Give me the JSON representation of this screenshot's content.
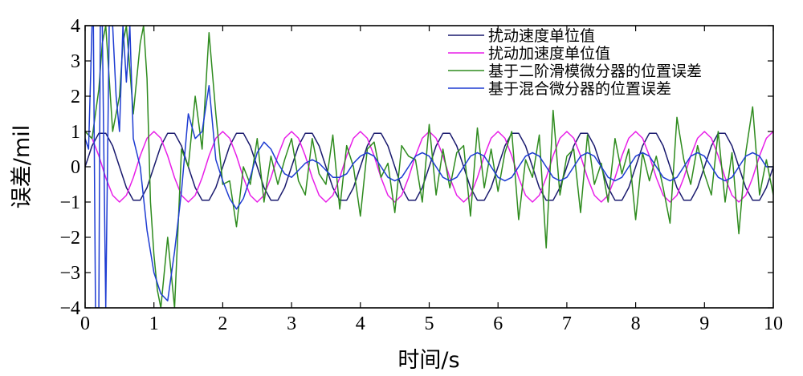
{
  "chart_data": {
    "type": "line",
    "xlabel": "时间/s",
    "ylabel": "误差/mil",
    "xlim": [
      0,
      10
    ],
    "ylim": [
      -4,
      4
    ],
    "x_ticks": [
      0,
      1,
      2,
      3,
      4,
      5,
      6,
      7,
      8,
      9,
      10
    ],
    "x_tick_labels": [
      "0",
      "1",
      "2",
      "3",
      "4",
      "5",
      "6",
      "7",
      "8",
      "9",
      "10"
    ],
    "y_ticks": [
      -4,
      -3,
      -2,
      -1,
      0,
      1,
      2,
      3,
      4
    ],
    "y_tick_labels": [
      "−4",
      "−3",
      "−2",
      "−1",
      "0",
      "1",
      "2",
      "3",
      "4"
    ],
    "grid": false,
    "legend_position": "top-right",
    "series": [
      {
        "name": "扰动速度单位值",
        "color": "#1a1a6e",
        "x": [
          0,
          0.1,
          0.2,
          0.3,
          0.4,
          0.5,
          0.6,
          0.7,
          0.8,
          0.9,
          1.0,
          1.1,
          1.2,
          1.3,
          1.4,
          1.5,
          1.6,
          1.7,
          1.8,
          1.9,
          2.0,
          2.1,
          2.2,
          2.3,
          2.4,
          2.5,
          2.6,
          2.7,
          2.8,
          2.9,
          3.0,
          3.1,
          3.2,
          3.3,
          3.4,
          3.5,
          3.6,
          3.7,
          3.8,
          3.9,
          4.0,
          4.1,
          4.2,
          4.3,
          4.4,
          4.5,
          4.6,
          4.7,
          4.8,
          4.9,
          5.0,
          5.1,
          5.2,
          5.3,
          5.4,
          5.5,
          5.6,
          5.7,
          5.8,
          5.9,
          6.0,
          6.1,
          6.2,
          6.3,
          6.4,
          6.5,
          6.6,
          6.7,
          6.8,
          6.9,
          7.0,
          7.1,
          7.2,
          7.3,
          7.4,
          7.5,
          7.6,
          7.7,
          7.8,
          7.9,
          8.0,
          8.1,
          8.2,
          8.3,
          8.4,
          8.5,
          8.6,
          8.7,
          8.8,
          8.9,
          9.0,
          9.1,
          9.2,
          9.3,
          9.4,
          9.5,
          9.6,
          9.7,
          9.8,
          9.9,
          10.0
        ],
        "y": [
          0.0,
          0.59,
          0.95,
          0.95,
          0.59,
          0.0,
          -0.59,
          -0.95,
          -0.95,
          -0.59,
          0.0,
          0.59,
          0.95,
          0.95,
          0.59,
          0.0,
          -0.59,
          -0.95,
          -0.95,
          -0.59,
          0.0,
          0.59,
          0.95,
          0.95,
          0.59,
          0.0,
          -0.59,
          -0.95,
          -0.95,
          -0.59,
          0.0,
          0.59,
          0.95,
          0.95,
          0.59,
          0.0,
          -0.59,
          -0.95,
          -0.95,
          -0.59,
          0.0,
          0.59,
          0.95,
          0.95,
          0.59,
          0.0,
          -0.59,
          -0.95,
          -0.95,
          -0.59,
          0.0,
          0.59,
          0.95,
          0.95,
          0.59,
          0.0,
          -0.59,
          -0.95,
          -0.95,
          -0.59,
          0.0,
          0.59,
          0.95,
          0.95,
          0.59,
          0.0,
          -0.59,
          -0.95,
          -0.95,
          -0.59,
          0.0,
          0.59,
          0.95,
          0.95,
          0.59,
          0.0,
          -0.59,
          -0.95,
          -0.95,
          -0.59,
          0.0,
          0.59,
          0.95,
          0.95,
          0.59,
          0.0,
          -0.59,
          -0.95,
          -0.95,
          -0.59,
          0.0,
          0.59,
          0.95,
          0.95,
          0.59,
          0.0,
          -0.59,
          -0.95,
          -0.95,
          -0.59,
          0.0
        ]
      },
      {
        "name": "扰动加速度单位值",
        "color": "#e81ee8",
        "x": [
          0,
          0.1,
          0.2,
          0.3,
          0.4,
          0.5,
          0.6,
          0.7,
          0.8,
          0.9,
          1.0,
          1.1,
          1.2,
          1.3,
          1.4,
          1.5,
          1.6,
          1.7,
          1.8,
          1.9,
          2.0,
          2.1,
          2.2,
          2.3,
          2.4,
          2.5,
          2.6,
          2.7,
          2.8,
          2.9,
          3.0,
          3.1,
          3.2,
          3.3,
          3.4,
          3.5,
          3.6,
          3.7,
          3.8,
          3.9,
          4.0,
          4.1,
          4.2,
          4.3,
          4.4,
          4.5,
          4.6,
          4.7,
          4.8,
          4.9,
          5.0,
          5.1,
          5.2,
          5.3,
          5.4,
          5.5,
          5.6,
          5.7,
          5.8,
          5.9,
          6.0,
          6.1,
          6.2,
          6.3,
          6.4,
          6.5,
          6.6,
          6.7,
          6.8,
          6.9,
          7.0,
          7.1,
          7.2,
          7.3,
          7.4,
          7.5,
          7.6,
          7.7,
          7.8,
          7.9,
          8.0,
          8.1,
          8.2,
          8.3,
          8.4,
          8.5,
          8.6,
          8.7,
          8.8,
          8.9,
          9.0,
          9.1,
          9.2,
          9.3,
          9.4,
          9.5,
          9.6,
          9.7,
          9.8,
          9.9,
          10.0
        ],
        "y": [
          1.0,
          0.81,
          0.31,
          -0.31,
          -0.81,
          -1.0,
          -0.81,
          -0.31,
          0.31,
          0.81,
          1.0,
          0.81,
          0.31,
          -0.31,
          -0.81,
          -1.0,
          -0.81,
          -0.31,
          0.31,
          0.81,
          1.0,
          0.81,
          0.31,
          -0.31,
          -0.81,
          -1.0,
          -0.81,
          -0.31,
          0.31,
          0.81,
          1.0,
          0.81,
          0.31,
          -0.31,
          -0.81,
          -1.0,
          -0.81,
          -0.31,
          0.31,
          0.81,
          1.0,
          0.81,
          0.31,
          -0.31,
          -0.81,
          -1.0,
          -0.81,
          -0.31,
          0.31,
          0.81,
          1.0,
          0.81,
          0.31,
          -0.31,
          -0.81,
          -1.0,
          -0.81,
          -0.31,
          0.31,
          0.81,
          1.0,
          0.81,
          0.31,
          -0.31,
          -0.81,
          -1.0,
          -0.81,
          -0.31,
          0.31,
          0.81,
          1.0,
          0.81,
          0.31,
          -0.31,
          -0.81,
          -1.0,
          -0.81,
          -0.31,
          0.31,
          0.81,
          1.0,
          0.81,
          0.31,
          -0.31,
          -0.81,
          -1.0,
          -0.81,
          -0.31,
          0.31,
          0.81,
          1.0,
          0.81,
          0.31,
          -0.31,
          -0.81,
          -1.0,
          -0.81,
          -0.31,
          0.31,
          0.81,
          1.0
        ]
      },
      {
        "name": "基于二阶滑模微分器的位置误差",
        "color": "#2e8b1e",
        "x": [
          0,
          0.1,
          0.2,
          0.25,
          0.3,
          0.4,
          0.5,
          0.55,
          0.6,
          0.7,
          0.8,
          0.85,
          0.9,
          0.95,
          1.0,
          1.05,
          1.1,
          1.2,
          1.3,
          1.4,
          1.5,
          1.6,
          1.7,
          1.8,
          1.9,
          2.0,
          2.1,
          2.2,
          2.3,
          2.4,
          2.5,
          2.6,
          2.7,
          2.8,
          2.9,
          3.0,
          3.1,
          3.2,
          3.3,
          3.4,
          3.5,
          3.6,
          3.7,
          3.8,
          3.9,
          4.0,
          4.1,
          4.2,
          4.3,
          4.4,
          4.5,
          4.6,
          4.7,
          4.8,
          4.9,
          5.0,
          5.1,
          5.2,
          5.3,
          5.4,
          5.5,
          5.6,
          5.7,
          5.8,
          5.9,
          6.0,
          6.1,
          6.2,
          6.3,
          6.4,
          6.5,
          6.6,
          6.7,
          6.8,
          6.9,
          7.0,
          7.1,
          7.2,
          7.3,
          7.4,
          7.5,
          7.6,
          7.7,
          7.8,
          7.9,
          8.0,
          8.1,
          8.2,
          8.3,
          8.4,
          8.5,
          8.6,
          8.7,
          8.8,
          8.9,
          9.0,
          9.1,
          9.2,
          9.3,
          9.4,
          9.5,
          9.6,
          9.7,
          9.8,
          9.9,
          10.0
        ],
        "y": [
          1.0,
          0.8,
          2.2,
          3.5,
          4.0,
          1.0,
          2.0,
          3.5,
          4.0,
          1.5,
          3.5,
          4.0,
          2.5,
          -1.0,
          -2.5,
          -3.5,
          -4.0,
          -2.0,
          -4.0,
          0.5,
          0.0,
          2.0,
          0.5,
          3.8,
          1.5,
          -0.5,
          -0.4,
          -1.7,
          0.0,
          -0.5,
          0.8,
          -1.0,
          0.3,
          -0.5,
          0.2,
          0.8,
          -0.4,
          -0.8,
          0.8,
          -0.2,
          -0.5,
          0.9,
          -1.2,
          0.6,
          0.0,
          -1.4,
          0.5,
          0.7,
          -0.3,
          0.1,
          -1.3,
          0.6,
          0.3,
          0.2,
          -1.0,
          1.2,
          -0.8,
          0.5,
          -0.6,
          0.4,
          0.6,
          -1.4,
          1.1,
          -0.6,
          0.5,
          -0.7,
          0.4,
          1.0,
          -1.5,
          0.2,
          -0.3,
          0.9,
          -2.3,
          1.6,
          -0.8,
          0.3,
          0.5,
          -1.3,
          0.9,
          -0.5,
          0.1,
          -1.0,
          0.8,
          -0.2,
          0.5,
          -1.5,
          0.4,
          -0.4,
          0.3,
          -0.6,
          -1.6,
          1.4,
          0.2,
          -0.5,
          0.6,
          -0.2,
          -0.8,
          1.0,
          -1.0,
          0.4,
          -1.9,
          0.4,
          1.7,
          -0.8,
          0.2,
          -0.8
        ]
      },
      {
        "name": "基于混合微分器的位置误差",
        "color": "#1e3cd2",
        "x": [
          0,
          0.05,
          0.1,
          0.12,
          0.15,
          0.2,
          0.22,
          0.25,
          0.3,
          0.35,
          0.4,
          0.45,
          0.5,
          0.55,
          0.6,
          0.65,
          0.7,
          0.8,
          0.9,
          1.0,
          1.1,
          1.2,
          1.3,
          1.4,
          1.5,
          1.6,
          1.7,
          1.8,
          1.9,
          2.0,
          2.1,
          2.2,
          2.3,
          2.4,
          2.5,
          2.6,
          2.7,
          2.8,
          2.9,
          3.0,
          3.1,
          3.2,
          3.3,
          3.4,
          3.5,
          3.6,
          3.7,
          3.8,
          3.9,
          4.0,
          4.1,
          4.2,
          4.3,
          4.4,
          4.5,
          4.6,
          4.7,
          4.8,
          4.9,
          5.0,
          5.1,
          5.2,
          5.3,
          5.4,
          5.5,
          5.6,
          5.7,
          5.8,
          5.9,
          6.0,
          6.1,
          6.2,
          6.3,
          6.4,
          6.5,
          6.6,
          6.7,
          6.8,
          6.9,
          7.0,
          7.1,
          7.2,
          7.3,
          7.4,
          7.5,
          7.6,
          7.7,
          7.8,
          7.9,
          8.0,
          8.1,
          8.2,
          8.3,
          8.4,
          8.5,
          8.6,
          8.7,
          8.8,
          8.9,
          9.0,
          9.1,
          9.2,
          9.3,
          9.4,
          9.5,
          9.6,
          9.7,
          9.8,
          9.9,
          10.0
        ],
        "y": [
          0.8,
          0.5,
          4.0,
          4.0,
          -4.0,
          -4.0,
          4.0,
          4.0,
          -4.0,
          4.0,
          4.0,
          2.0,
          1.0,
          4.0,
          2.4,
          4.0,
          0.8,
          0.0,
          -1.8,
          -3.0,
          -3.6,
          -3.8,
          -2.4,
          -0.7,
          1.5,
          0.8,
          1.0,
          2.3,
          0.2,
          -0.4,
          -0.9,
          -1.2,
          -0.9,
          -0.3,
          0.4,
          0.7,
          0.5,
          0.1,
          -0.2,
          -0.3,
          -0.1,
          0.1,
          0.2,
          0.1,
          -0.1,
          -0.3,
          -0.3,
          -0.2,
          0.1,
          0.3,
          0.4,
          0.3,
          0.0,
          -0.3,
          -0.4,
          -0.3,
          0.0,
          0.3,
          0.4,
          0.3,
          0.0,
          -0.3,
          -0.4,
          -0.3,
          0.0,
          0.3,
          0.4,
          0.3,
          0.0,
          -0.3,
          -0.4,
          -0.3,
          0.0,
          0.3,
          0.4,
          0.3,
          0.0,
          -0.3,
          -0.4,
          -0.3,
          0.0,
          0.3,
          0.4,
          0.3,
          0.0,
          -0.3,
          -0.4,
          -0.3,
          0.0,
          0.3,
          0.4,
          0.3,
          0.0,
          -0.3,
          -0.4,
          -0.3,
          0.0,
          0.3,
          0.4,
          0.3,
          0.0,
          -0.3,
          -0.4,
          -0.3,
          0.0,
          0.3,
          0.4,
          0.3,
          0.0,
          0.0
        ]
      }
    ]
  }
}
